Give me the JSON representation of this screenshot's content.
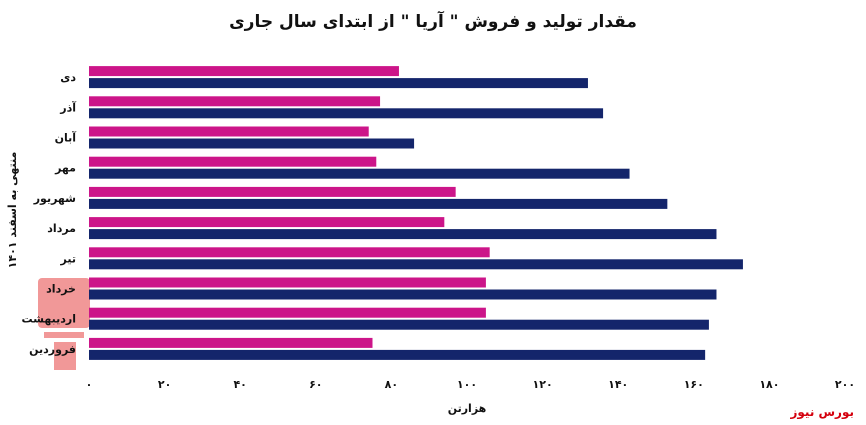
{
  "title": "مقدار تولید و فروش \" آریا \" از ابتدای سال جاری",
  "source": "بورس نیوز",
  "colors": {
    "series1": "#cc1589",
    "series2": "#14256b"
  },
  "chart_data": {
    "type": "bar",
    "orientation": "horizontal",
    "title": "مقدار تولید و فروش \" آریا \" از ابتدای سال جاری",
    "ylabel": "منتهی به اسفند ۱۴۰۱",
    "xlabel": "هزارتن",
    "xlim": [
      0,
      200
    ],
    "x_ticks": [
      "۰",
      "۲۰",
      "۴۰",
      "۶۰",
      "۸۰",
      "۱۰۰",
      "۱۲۰",
      "۱۴۰",
      "۱۶۰",
      "۱۸۰",
      "۲۰۰"
    ],
    "categories": [
      "دی",
      "آذر",
      "آبان",
      "مهر",
      "شهریور",
      "مرداد",
      "تیر",
      "خرداد",
      "اردیبهشت",
      "فروردین"
    ],
    "series": [
      {
        "values": [
          82,
          77,
          74,
          76,
          97,
          94,
          106,
          105,
          105,
          75
        ],
        "color": "#cc1589"
      },
      {
        "values": [
          132,
          136,
          86,
          143,
          153,
          166,
          173,
          166,
          164,
          163
        ],
        "color": "#14256b"
      }
    ],
    "grid": false,
    "legend": "none"
  }
}
